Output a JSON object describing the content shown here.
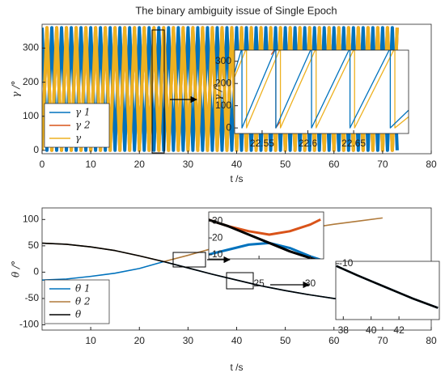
{
  "chart_data": [
    {
      "type": "line",
      "title": "The binary ambiguity issue of Single Epoch",
      "xlabel": "t /s",
      "ylabel": "γ /°",
      "xlim": [
        0,
        80
      ],
      "xticks": [
        0,
        10,
        20,
        30,
        40,
        50,
        60,
        70,
        80
      ],
      "ylim": [
        -10,
        370
      ],
      "yticks": [
        0,
        100,
        200,
        300
      ],
      "legend": "lower left",
      "x": [
        0,
        1,
        2,
        3,
        4,
        5,
        6,
        7,
        8,
        9,
        10,
        11,
        12,
        13,
        14,
        15,
        16,
        17,
        18,
        19,
        20,
        21,
        22,
        23,
        24,
        25,
        26,
        27,
        28,
        29,
        30,
        31,
        32,
        33,
        34,
        35,
        36,
        37,
        38,
        39,
        40,
        41,
        42,
        43,
        44,
        45,
        46,
        47,
        48,
        49,
        50,
        51,
        52,
        53,
        54,
        55,
        56,
        57,
        58,
        59,
        60,
        61,
        62,
        63,
        64,
        65,
        66,
        67,
        68,
        69,
        70,
        71,
        72,
        73
      ],
      "series": [
        {
          "name": "γ 1",
          "color": "#0072bd",
          "values": [
            360,
            0,
            360,
            0,
            360,
            0,
            360,
            0,
            360,
            0,
            360,
            0,
            360,
            0,
            360,
            0,
            360,
            0,
            360,
            0,
            360,
            0,
            360,
            0,
            360,
            0,
            360,
            0,
            360,
            0,
            360,
            0,
            360,
            0,
            360,
            0,
            360,
            0,
            360,
            0,
            360,
            0,
            360,
            0,
            360,
            0,
            360,
            0,
            360,
            0,
            360,
            0,
            360,
            0,
            360,
            0,
            360,
            0,
            360,
            0,
            360,
            0,
            360,
            0,
            360,
            0,
            360,
            0,
            360,
            0,
            360,
            0,
            360,
            0
          ]
        },
        {
          "name": "γ 2",
          "color": "#d95319",
          "values": [
            0,
            360,
            0,
            360,
            0,
            360,
            0,
            360,
            0,
            360,
            0,
            360,
            0,
            360,
            0,
            360,
            0,
            360,
            0,
            360,
            0,
            360,
            0,
            360,
            0,
            360,
            0,
            360,
            0,
            360,
            0,
            360,
            0,
            360,
            0,
            360,
            0,
            360,
            0,
            360,
            0,
            360,
            0,
            360,
            0,
            360,
            0,
            360,
            0,
            360,
            0,
            360,
            0,
            360,
            0,
            360,
            0,
            360,
            0,
            360,
            0,
            360,
            0,
            360,
            0,
            360,
            0,
            360,
            0,
            360,
            0,
            360,
            0,
            360
          ]
        },
        {
          "name": "γ",
          "color": "#edb120",
          "values": [
            0,
            360,
            0,
            360,
            0,
            360,
            0,
            360,
            0,
            360,
            0,
            360,
            0,
            360,
            0,
            360,
            0,
            360,
            0,
            360,
            0,
            360,
            0,
            360,
            0,
            360,
            0,
            360,
            0,
            360,
            0,
            360,
            0,
            360,
            0,
            360,
            0,
            360,
            0,
            360,
            0,
            360,
            0,
            360,
            0,
            360,
            0,
            360,
            0,
            360,
            0,
            360,
            0,
            360,
            0,
            360,
            0,
            360,
            0,
            360,
            0,
            360,
            0,
            360,
            0,
            360,
            0,
            360,
            0,
            360,
            0,
            360,
            0,
            360
          ]
        }
      ]
    },
    {
      "type": "line",
      "ylabel": "γ /°",
      "xlim": [
        22.52,
        22.71
      ],
      "xticks": [
        {
          "value": 22.55,
          "label": "22.55"
        },
        {
          "value": 22.6,
          "label": "22.6"
        },
        {
          "value": 22.65,
          "label": "22.65"
        }
      ],
      "ylim": [
        -25,
        350
      ],
      "yticks": [
        0,
        100,
        200,
        300
      ],
      "series": [
        {
          "color": "#d95319",
          "x": [
            22.56,
            22.565,
            22.565,
            22.57
          ],
          "values": [
            330,
            360,
            0,
            30
          ]
        },
        {
          "color": "#edb120",
          "x": [
            22.52,
            22.533,
            22.533,
            22.57,
            22.57,
            22.609,
            22.609,
            22.651,
            22.651,
            22.695,
            22.695,
            22.71
          ],
          "values": [
            230,
            360,
            0,
            360,
            0,
            360,
            0,
            360,
            0,
            360,
            0,
            50
          ]
        },
        {
          "color": "#0072bd",
          "x": [
            22.52,
            22.528,
            22.528,
            22.565,
            22.565,
            22.604,
            22.604,
            22.646,
            22.646,
            22.69,
            22.69,
            22.71
          ],
          "values": [
            250,
            360,
            0,
            360,
            0,
            360,
            0,
            360,
            0,
            360,
            0,
            80
          ]
        }
      ]
    },
    {
      "type": "line",
      "xlabel": "t /s",
      "ylabel": "θ /°",
      "xlim": [
        0,
        80
      ],
      "xticks": [
        10,
        20,
        30,
        40,
        50,
        60,
        70,
        80
      ],
      "ylim": [
        -110,
        122
      ],
      "yticks": [
        -100,
        -50,
        0,
        50,
        100
      ],
      "legend": "lower left",
      "x": [
        0,
        5,
        10,
        15,
        20,
        25,
        30,
        35,
        40,
        45,
        50,
        55,
        60,
        65,
        70,
        75,
        80
      ],
      "series": [
        {
          "name": "θ 1",
          "color": "#0072bd",
          "values": [
            -15,
            -13,
            -8,
            -2,
            7,
            20,
            8,
            -4,
            -15,
            -26,
            -35,
            -43,
            -50,
            -55,
            -58,
            -61,
            -63
          ]
        },
        {
          "name": "θ 2",
          "color": "#b07a3a",
          "values": [
            55,
            53,
            48,
            41,
            31,
            20,
            32,
            45,
            57,
            67,
            76,
            84,
            91,
            97,
            103,
            null,
            null
          ]
        },
        {
          "name": "θ",
          "color": "#000000",
          "values": [
            55,
            53,
            48,
            41,
            31,
            20,
            8,
            -4,
            -15,
            -26,
            -35,
            -43,
            -50,
            -55,
            -58,
            -61,
            -63
          ]
        }
      ]
    },
    {
      "type": "line",
      "xlim": [
        20.1,
        31.3
      ],
      "xticks": [
        25,
        30
      ],
      "ylim": [
        7.5,
        35.5
      ],
      "yticks": [
        10,
        20,
        30
      ],
      "x": [
        20,
        22,
        24,
        26,
        28,
        30,
        31
      ],
      "series": [
        {
          "color": "#d95319",
          "values": [
            31,
            27,
            24,
            22,
            24,
            28,
            31
          ]
        },
        {
          "color": "#0072bd",
          "values": [
            10,
            13,
            16,
            17,
            14,
            9,
            7
          ]
        },
        {
          "color": "#000000",
          "values": [
            31,
            27,
            22,
            17,
            12,
            8,
            6
          ]
        }
      ]
    },
    {
      "type": "line",
      "xlim": [
        37.46,
        44.9
      ],
      "xticks": [
        38,
        40,
        42
      ],
      "ylim": [
        -34,
        -9
      ],
      "yticks": [
        -10
      ],
      "x": [
        37.5,
        39,
        40,
        41,
        42,
        43,
        44.8
      ],
      "series": [
        {
          "color": "#0072bd",
          "values": [
            -11,
            -15,
            -17.5,
            -20,
            -22.5,
            -25,
            -29
          ]
        },
        {
          "color": "#000000",
          "values": [
            -11,
            -15,
            -17.5,
            -20,
            -22.5,
            -25,
            -29
          ]
        }
      ]
    }
  ]
}
